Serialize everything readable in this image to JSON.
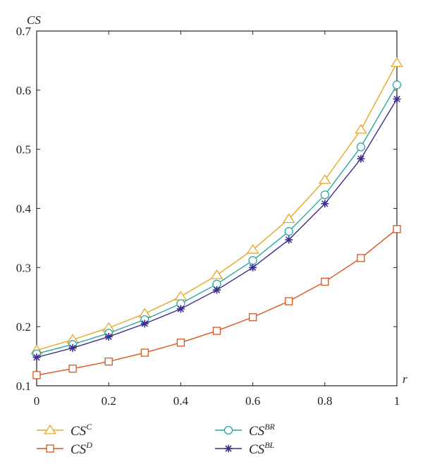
{
  "chart_data": {
    "type": "line",
    "title": "",
    "xlabel": "r",
    "ylabel": "CS",
    "xlim": [
      0,
      1
    ],
    "ylim": [
      0.1,
      0.7
    ],
    "xticks": [
      "0",
      "0.2",
      "0.4",
      "0.6",
      "0.8",
      "1"
    ],
    "yticks": [
      "0.1",
      "0.2",
      "0.3",
      "0.4",
      "0.5",
      "0.6",
      "0.7"
    ],
    "x": [
      0,
      0.1,
      0.2,
      0.3,
      0.4,
      0.5,
      0.6,
      0.7,
      0.8,
      0.9,
      1.0
    ],
    "grid": false,
    "legend_position": "bottom",
    "series": [
      {
        "name": "CS",
        "sup": "C",
        "marker": "triangle",
        "color": "#E8A623",
        "values": [
          0.16,
          0.178,
          0.198,
          0.222,
          0.251,
          0.287,
          0.33,
          0.382,
          0.448,
          0.533,
          0.646
        ]
      },
      {
        "name": "CS",
        "sup": "BR",
        "marker": "circle",
        "color": "#2AA6A6",
        "values": [
          0.154,
          0.17,
          0.189,
          0.212,
          0.239,
          0.272,
          0.312,
          0.361,
          0.423,
          0.504,
          0.609
        ]
      },
      {
        "name": "CS",
        "sup": "BL",
        "marker": "star",
        "color": "#3B2D8F",
        "values": [
          0.148,
          0.164,
          0.183,
          0.205,
          0.23,
          0.262,
          0.3,
          0.347,
          0.408,
          0.484,
          0.585
        ]
      },
      {
        "name": "CS",
        "sup": "D",
        "marker": "square",
        "color": "#D9541E",
        "values": [
          0.118,
          0.129,
          0.141,
          0.156,
          0.173,
          0.193,
          0.216,
          0.243,
          0.276,
          0.316,
          0.365
        ]
      }
    ]
  }
}
